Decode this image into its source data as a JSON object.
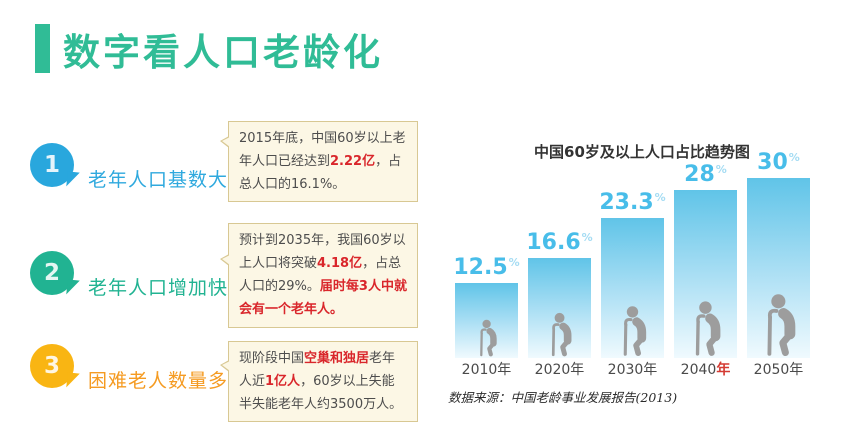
{
  "header": {
    "title": "数字看人口老龄化",
    "accent_color": "#30BC96"
  },
  "items": [
    {
      "number": "1",
      "label": "老年人口基数大",
      "bubble_color": "#29A7DD",
      "label_color": "#2FA9DE",
      "note_segments": [
        {
          "text": "2015年底，中国60岁以上老年人口已经达到",
          "em": false
        },
        {
          "text": "2.22亿",
          "em": true
        },
        {
          "text": "，占总人口的16.1%。",
          "em": false
        }
      ]
    },
    {
      "number": "2",
      "label": "老年人口增加快",
      "bubble_color": "#21B392",
      "label_color": "#21B392",
      "note_segments": [
        {
          "text": "预计到2035年，我国60岁以上人口将突破",
          "em": false
        },
        {
          "text": "4.18亿",
          "em": true
        },
        {
          "text": "，占总人口的29%。",
          "em": false
        },
        {
          "text": "届时每3人中就会有一个老年人。",
          "em": true
        }
      ]
    },
    {
      "number": "3",
      "label": "困难老人数量多",
      "bubble_color": "#F9B513",
      "label_color": "#F59B22",
      "note_segments": [
        {
          "text": "现阶段中国",
          "em": false
        },
        {
          "text": "空巢和独居",
          "em": true
        },
        {
          "text": "老年人近",
          "em": false
        },
        {
          "text": "1亿人",
          "em": true
        },
        {
          "text": "，60岁以上失能半失能老年人约3500万人。",
          "em": false
        }
      ]
    }
  ],
  "chart_data": {
    "type": "bar",
    "title": "中国60岁及以上人口占比趋势图",
    "categories": [
      "2010年",
      "2020年",
      "2030年",
      "2040年",
      "2050年"
    ],
    "values": [
      12.5,
      16.6,
      23.3,
      28,
      30
    ],
    "unit": "%",
    "xlabel": "",
    "ylabel": "",
    "ylim": [
      0,
      30
    ],
    "grid": false,
    "legend": false,
    "highlight_category_index": 3,
    "highlight_color": "#D43B33",
    "bar_color_top": "#60C4E8",
    "bar_color_bottom": "#F0FAFE",
    "value_label_color": "#48BDE9",
    "figure_icon": "elderly-person-with-cane",
    "source": "数据来源：中国老龄事业发展报告(2013)"
  },
  "colors": {
    "note_bg": "#FCF7E5",
    "note_border": "#D8C893",
    "note_text": "#4D4D4D",
    "emphasis_red": "#D9262B",
    "person_icon_gray": "#9D9D9D"
  }
}
